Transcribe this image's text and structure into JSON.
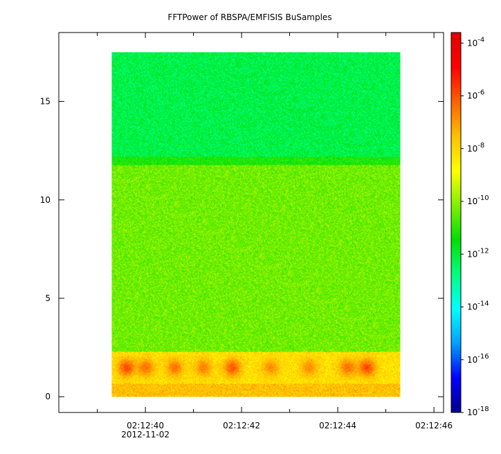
{
  "chart_data": {
    "type": "heatmap",
    "title": "FFTPower of RBSPA/EMFISIS  BuSamples",
    "xlabel": "",
    "ylabel": "",
    "x_ticks": [
      {
        "value": 40,
        "label": "02:12:40"
      },
      {
        "value": 42,
        "label": "02:12:42"
      },
      {
        "value": 44,
        "label": "02:12:44"
      },
      {
        "value": 46,
        "label": "02:12:46"
      }
    ],
    "x_minor_ticks": [
      39,
      41,
      43,
      45
    ],
    "x_date_label": "2012-11-02",
    "xlim": [
      38.2,
      46.2
    ],
    "y_ticks": [
      0,
      5,
      10,
      15
    ],
    "ylim": [
      -0.8,
      18.5
    ],
    "data_extent": {
      "x": [
        39.3,
        45.3
      ],
      "y": [
        0,
        17.5
      ]
    },
    "colorbar": {
      "scale": "log",
      "range_exponents": [
        -18,
        -3.6
      ],
      "tick_exponents": [
        -18,
        -16,
        -14,
        -12,
        -10,
        -8,
        -6,
        -4
      ],
      "colors": [
        "#00008c",
        "#0000ff",
        "#00a0ff",
        "#00ffff",
        "#00ff80",
        "#00e000",
        "#80f000",
        "#ffff00",
        "#ffc000",
        "#ff6000",
        "#ff0000",
        "#e00000"
      ]
    },
    "bands": [
      {
        "y": [
          12.2,
          17.5
        ],
        "level_exponent": -12.2
      },
      {
        "y": [
          11.8,
          12.2
        ],
        "level_exponent": -11.3
      },
      {
        "y": [
          2.3,
          11.8
        ],
        "level_exponent": -10.3
      },
      {
        "y": [
          0.7,
          2.3
        ],
        "level_exponent": -8.2
      },
      {
        "y": [
          0.0,
          0.7
        ],
        "level_exponent": -7.6
      }
    ],
    "hotspots": [
      {
        "x": 39.6,
        "y": 1.5,
        "level_exponent": -5.3
      },
      {
        "x": 40.0,
        "y": 1.5,
        "level_exponent": -6.0
      },
      {
        "x": 40.6,
        "y": 1.5,
        "level_exponent": -6.0
      },
      {
        "x": 41.2,
        "y": 1.5,
        "level_exponent": -6.3
      },
      {
        "x": 41.8,
        "y": 1.5,
        "level_exponent": -5.5
      },
      {
        "x": 42.6,
        "y": 1.5,
        "level_exponent": -6.5
      },
      {
        "x": 43.4,
        "y": 1.5,
        "level_exponent": -6.5
      },
      {
        "x": 44.2,
        "y": 1.5,
        "level_exponent": -6.0
      },
      {
        "x": 44.6,
        "y": 1.5,
        "level_exponent": -5.3
      }
    ]
  }
}
